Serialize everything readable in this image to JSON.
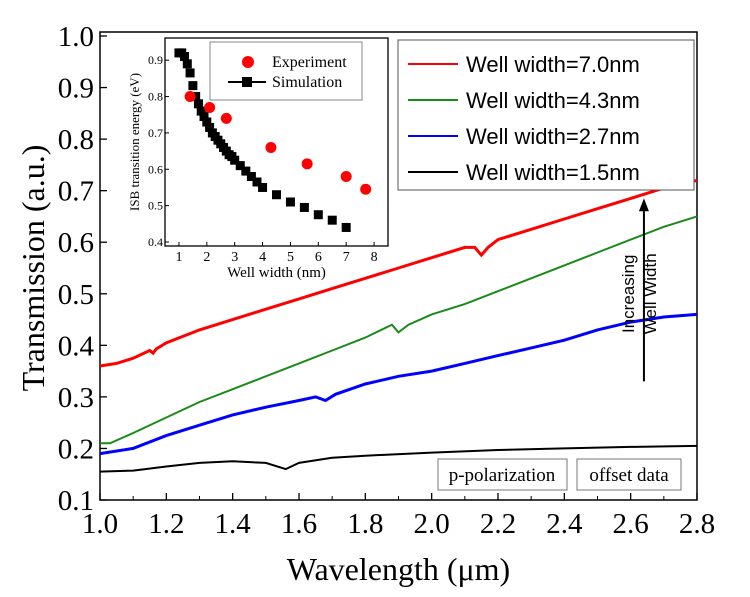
{
  "chart_data": [
    {
      "type": "line",
      "xlabel": "Wavelength (μm)",
      "ylabel": "Transmission (a.u.)",
      "xlim": [
        1.0,
        2.8
      ],
      "ylim": [
        0.1,
        1.0
      ],
      "xticks": [
        "1.0",
        "1.2",
        "1.4",
        "1.6",
        "1.8",
        "2.0",
        "2.2",
        "2.4",
        "2.6",
        "2.8"
      ],
      "yticks": [
        "0.1",
        "0.2",
        "0.3",
        "0.4",
        "0.5",
        "0.6",
        "0.7",
        "0.8",
        "0.9",
        "1.0"
      ],
      "grid": false,
      "legend": "top-right",
      "series": [
        {
          "name": "Well width=7.0nm",
          "color": "#ff0000",
          "x": [
            1.0,
            1.05,
            1.1,
            1.15,
            1.16,
            1.17,
            1.2,
            1.3,
            1.4,
            1.5,
            1.6,
            1.7,
            1.8,
            1.9,
            2.0,
            2.1,
            2.13,
            2.15,
            2.17,
            2.2,
            2.3,
            2.4,
            2.5,
            2.6,
            2.7,
            2.8
          ],
          "y": [
            0.36,
            0.365,
            0.375,
            0.39,
            0.385,
            0.393,
            0.405,
            0.43,
            0.45,
            0.47,
            0.49,
            0.51,
            0.53,
            0.55,
            0.57,
            0.59,
            0.59,
            0.575,
            0.59,
            0.605,
            0.625,
            0.645,
            0.665,
            0.685,
            0.705,
            0.72
          ]
        },
        {
          "name": "Well width=4.3nm",
          "color": "#1a8a1a",
          "x": [
            1.0,
            1.03,
            1.1,
            1.2,
            1.3,
            1.4,
            1.5,
            1.6,
            1.7,
            1.8,
            1.88,
            1.9,
            1.93,
            2.0,
            2.1,
            2.2,
            2.3,
            2.4,
            2.5,
            2.6,
            2.7,
            2.8
          ],
          "y": [
            0.21,
            0.21,
            0.23,
            0.26,
            0.29,
            0.315,
            0.34,
            0.365,
            0.39,
            0.415,
            0.44,
            0.425,
            0.44,
            0.46,
            0.48,
            0.505,
            0.53,
            0.555,
            0.58,
            0.605,
            0.63,
            0.65
          ]
        },
        {
          "name": "Well width=2.7nm",
          "color": "#0000ff",
          "x": [
            1.0,
            1.1,
            1.2,
            1.3,
            1.4,
            1.5,
            1.6,
            1.65,
            1.68,
            1.71,
            1.8,
            1.9,
            2.0,
            2.1,
            2.2,
            2.3,
            2.4,
            2.5,
            2.6,
            2.7,
            2.8
          ],
          "y": [
            0.19,
            0.2,
            0.225,
            0.245,
            0.265,
            0.28,
            0.293,
            0.3,
            0.293,
            0.305,
            0.325,
            0.34,
            0.35,
            0.365,
            0.38,
            0.395,
            0.41,
            0.43,
            0.445,
            0.455,
            0.46
          ]
        },
        {
          "name": "Well width=1.5nm",
          "color": "#000000",
          "x": [
            1.0,
            1.1,
            1.2,
            1.3,
            1.4,
            1.5,
            1.56,
            1.6,
            1.7,
            1.8,
            2.0,
            2.2,
            2.4,
            2.6,
            2.8
          ],
          "y": [
            0.155,
            0.157,
            0.165,
            0.172,
            0.175,
            0.172,
            0.16,
            0.172,
            0.182,
            0.186,
            0.192,
            0.197,
            0.2,
            0.203,
            0.205
          ]
        }
      ],
      "annotations": [
        "Increasing Well Width",
        "p-polarization",
        "offset data"
      ]
    },
    {
      "type": "scatter",
      "xlabel": "Well width (nm)",
      "ylabel": "ISB transition energy (eV)",
      "xlim": [
        0.5,
        8.5
      ],
      "ylim": [
        0.4,
        0.95
      ],
      "xticks": [
        "1",
        "2",
        "3",
        "4",
        "5",
        "6",
        "7",
        "8"
      ],
      "yticks": [
        "0.4",
        "0.5",
        "0.6",
        "0.7",
        "0.8",
        "0.9"
      ],
      "legend": "top-right",
      "series": [
        {
          "name": "Experiment",
          "color": "#ff0000",
          "marker": "circle",
          "x": [
            1.4,
            2.1,
            2.7,
            4.3,
            5.6,
            7.0,
            7.7
          ],
          "y": [
            0.8,
            0.77,
            0.74,
            0.66,
            0.615,
            0.58,
            0.545
          ]
        },
        {
          "name": "Simulation",
          "color": "#000000",
          "marker": "square",
          "x": [
            1.0,
            1.1,
            1.2,
            1.3,
            1.4,
            1.5,
            1.6,
            1.7,
            1.8,
            1.9,
            2.0,
            2.1,
            2.2,
            2.3,
            2.4,
            2.5,
            2.6,
            2.7,
            2.8,
            2.9,
            3.0,
            3.2,
            3.4,
            3.6,
            3.8,
            4.0,
            4.5,
            5.0,
            5.5,
            6.0,
            6.5,
            7.0
          ],
          "y": [
            0.92,
            0.92,
            0.91,
            0.89,
            0.865,
            0.83,
            0.8,
            0.78,
            0.76,
            0.745,
            0.73,
            0.715,
            0.7,
            0.69,
            0.68,
            0.67,
            0.66,
            0.65,
            0.64,
            0.635,
            0.625,
            0.61,
            0.595,
            0.58,
            0.565,
            0.55,
            0.53,
            0.51,
            0.495,
            0.475,
            0.46,
            0.44
          ]
        }
      ]
    }
  ]
}
